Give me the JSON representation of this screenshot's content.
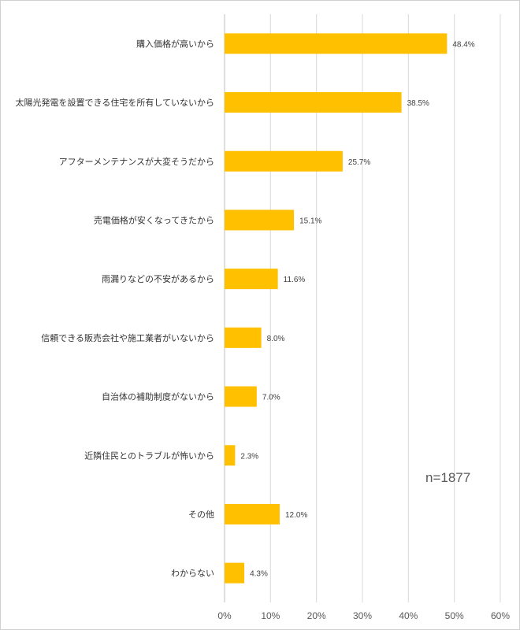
{
  "chart_data": {
    "type": "bar",
    "orientation": "horizontal",
    "categories": [
      "購入価格が高いから",
      "太陽光発電を設置できる住宅を所有していないから",
      "アフターメンテナンスが大変そうだから",
      "売電価格が安くなってきたから",
      "雨漏りなどの不安があるから",
      "信頼できる販売会社や施工業者がいないから",
      "自治体の補助制度がないから",
      "近隣住民とのトラブルが怖いから",
      "その他",
      "わからない"
    ],
    "values": [
      48.4,
      38.5,
      25.7,
      15.1,
      11.6,
      8.0,
      7.0,
      2.3,
      12.0,
      4.3
    ],
    "value_labels": [
      "48.4%",
      "38.5%",
      "25.7%",
      "15.1%",
      "11.6%",
      "8.0%",
      "7.0%",
      "2.3%",
      "12.0%",
      "4.3%"
    ],
    "xlim": [
      0,
      60
    ],
    "xticks": [
      "0%",
      "10%",
      "20%",
      "30%",
      "40%",
      "50%",
      "60%"
    ],
    "grid": true,
    "bar_color": "#FFC000",
    "annotation": "n=1877"
  }
}
